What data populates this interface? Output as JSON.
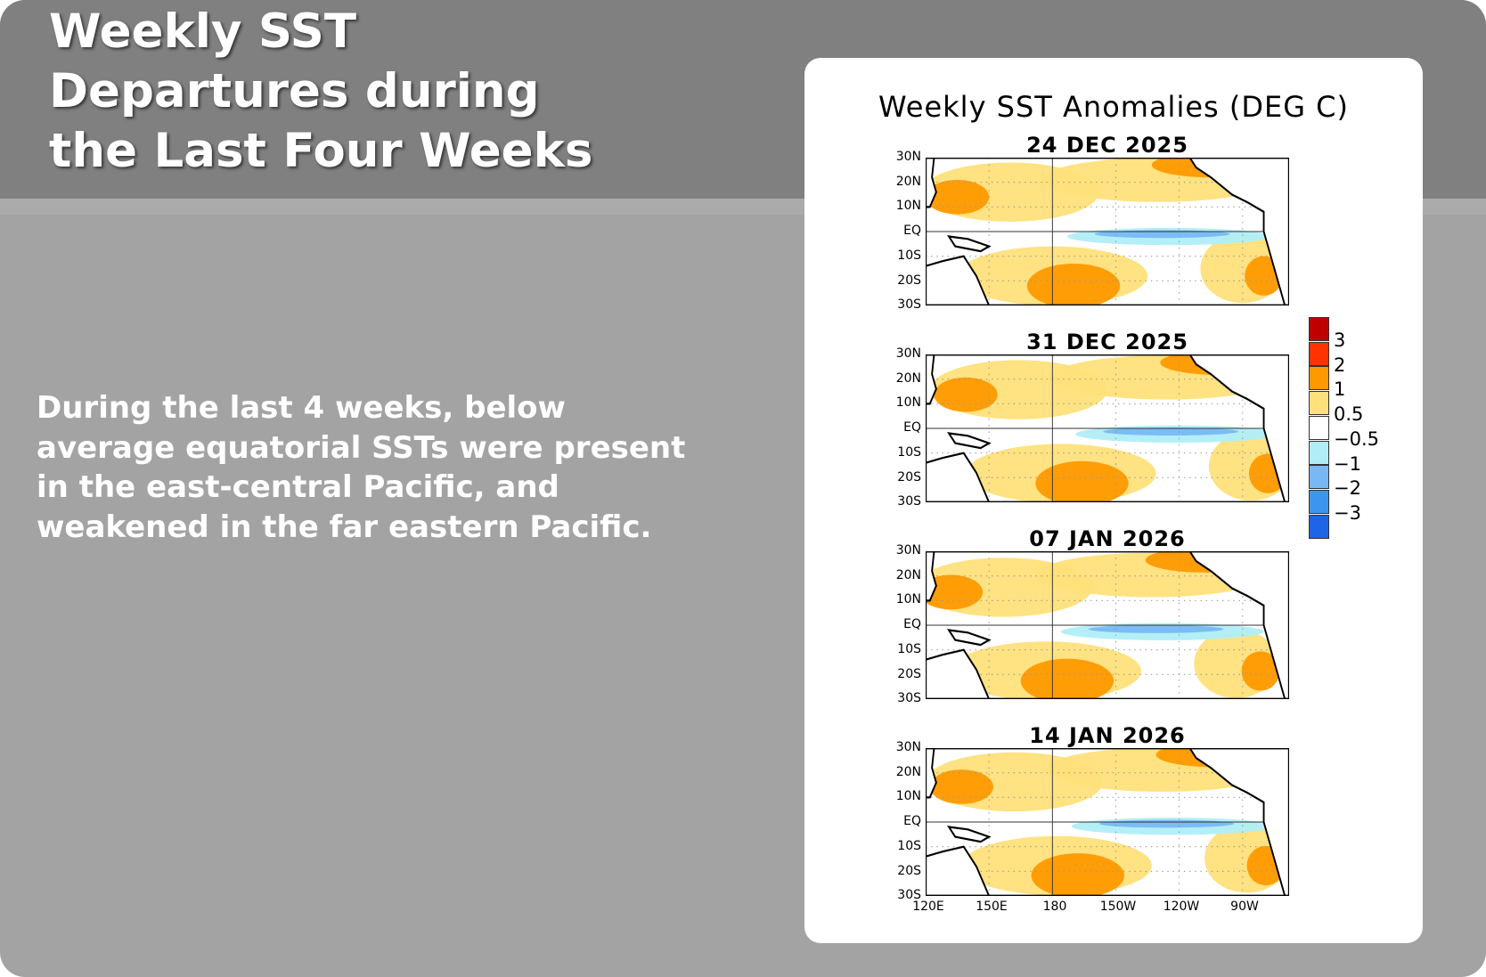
{
  "slide": {
    "title": "Weekly SST Departures during the Last Four Weeks",
    "body": "During the last 4 weeks, below average equatorial SSTs were present in the east-central Pacific, and weakened in the far eastern Pacific."
  },
  "figure": {
    "title": "Weekly SST Anomalies (DEG C)",
    "panels": [
      {
        "date": "24 DEC 2025"
      },
      {
        "date": "31 DEC 2025"
      },
      {
        "date": "07 JAN 2026"
      },
      {
        "date": "14 JAN 2026"
      }
    ],
    "lat_labels": [
      "30N",
      "20N",
      "10N",
      "EQ",
      "10S",
      "20S",
      "30S"
    ],
    "lon_labels": [
      "120E",
      "150E",
      "180",
      "150W",
      "120W",
      "90W"
    ],
    "legend": {
      "colors": [
        "#c00000",
        "#ff3300",
        "#ff9900",
        "#ffe07a",
        "#ffffff",
        "#b0eef7",
        "#78b8f5",
        "#3c96ef",
        "#1e64e6"
      ],
      "labels": [
        "3",
        "2",
        "1",
        "0.5",
        "−0.5",
        "−1",
        "−2",
        "−3"
      ]
    }
  }
}
